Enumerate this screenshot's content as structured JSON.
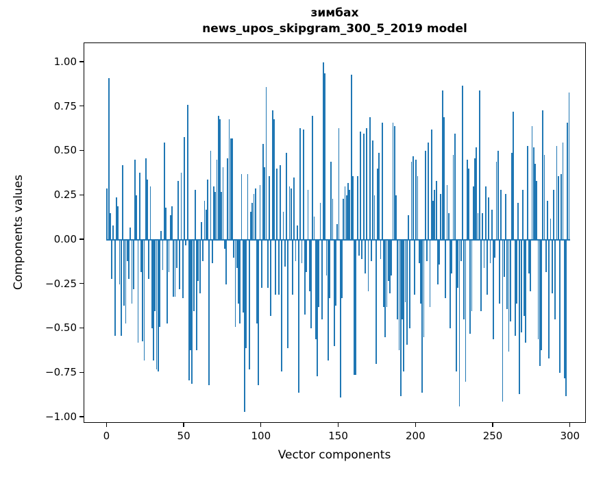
{
  "figure": {
    "title_line1": "зимбах",
    "title_line2": "news_upos_skipgram_300_5_2019 model",
    "xlabel": "Vector components",
    "ylabel": "Components values"
  },
  "chart_data": {
    "type": "bar",
    "title": "зимбах",
    "subtitle": "news_upos_skipgram_300_5_2019 model",
    "xlabel": "Vector components",
    "ylabel": "Components values",
    "n_components": 300,
    "bar_color": "#1f77b4",
    "spine_color": "#000000",
    "grid": false,
    "legend": "none",
    "xticks": [
      0,
      50,
      100,
      150,
      200,
      250,
      300
    ],
    "yticks": [
      1.0,
      0.75,
      0.5,
      0.25,
      0.0,
      -0.25,
      -0.5,
      -0.75,
      -1.0
    ],
    "xlim": [
      -14.8,
      310.3
    ],
    "ylim": [
      -1.035,
      1.108
    ],
    "values": [
      0.29,
      0.91,
      0.15,
      -0.22,
      0.08,
      -0.54,
      0.24,
      0.19,
      -0.25,
      -0.54,
      0.42,
      -0.37,
      -0.47,
      -0.12,
      -0.22,
      0.07,
      -0.36,
      -0.28,
      0.45,
      0.25,
      -0.58,
      0.38,
      -0.18,
      -0.57,
      -0.68,
      0.46,
      0.34,
      -0.22,
      0.3,
      -0.5,
      -0.68,
      -0.4,
      -0.73,
      -0.74,
      -0.49,
      0.05,
      -0.17,
      0.55,
      0.18,
      -0.47,
      -0.18,
      0.14,
      0.19,
      -0.32,
      -0.32,
      -0.16,
      0.33,
      -0.28,
      0.38,
      -0.33,
      0.58,
      -0.03,
      0.76,
      -0.79,
      -0.62,
      -0.81,
      -0.4,
      0.28,
      -0.62,
      -0.23,
      -0.3,
      0.1,
      -0.12,
      0.22,
      0.17,
      0.34,
      -0.82,
      0.5,
      -0.13,
      0.3,
      0.27,
      0.45,
      0.7,
      0.68,
      0.27,
      0.41,
      -0.05,
      -0.25,
      0.46,
      0.68,
      0.57,
      0.57,
      -0.1,
      -0.49,
      -0.16,
      -0.36,
      -0.47,
      0.37,
      -0.41,
      -0.97,
      -0.61,
      0.37,
      -0.73,
      0.16,
      0.21,
      0.26,
      0.29,
      -0.47,
      -0.82,
      0.31,
      -0.27,
      0.54,
      0.41,
      0.86,
      -0.27,
      0.36,
      -0.43,
      0.73,
      0.68,
      -0.31,
      0.4,
      -0.31,
      0.42,
      -0.74,
      0.16,
      -0.15,
      0.49,
      -0.61,
      0.3,
      0.29,
      -0.31,
      0.35,
      -0.12,
      0.08,
      -0.86,
      0.63,
      -0.13,
      0.62,
      -0.42,
      -0.18,
      0.28,
      -0.29,
      -0.5,
      0.7,
      0.13,
      -0.56,
      -0.77,
      -0.38,
      0.21,
      -0.45,
      1.0,
      0.94,
      -0.2,
      -0.68,
      -0.33,
      0.44,
      0.23,
      -0.6,
      -0.37,
      0.09,
      0.63,
      -0.89,
      -0.33,
      0.23,
      0.3,
      0.25,
      0.32,
      0.28,
      0.93,
      0.36,
      -0.76,
      -0.76,
      0.36,
      -0.09,
      0.61,
      -0.11,
      0.6,
      -0.19,
      0.63,
      -0.29,
      0.69,
      -0.12,
      0.56,
      0.25,
      -0.7,
      0.4,
      0.49,
      -0.11,
      0.66,
      -0.38,
      -0.55,
      -0.38,
      -0.23,
      -0.3,
      -0.2,
      0.66,
      0.64,
      0.25,
      -0.45,
      -0.62,
      -0.88,
      -0.45,
      -0.74,
      -0.35,
      -0.59,
      0.14,
      -0.5,
      0.44,
      0.47,
      -0.31,
      0.45,
      0.36,
      -0.13,
      -0.36,
      -0.86,
      -0.55,
      0.5,
      -0.12,
      0.55,
      -0.38,
      0.62,
      0.22,
      0.28,
      0.33,
      -0.25,
      -0.14,
      0.26,
      0.84,
      0.69,
      -0.33,
      0.31,
      0.15,
      -0.5,
      -0.19,
      0.48,
      0.6,
      -0.74,
      -0.27,
      -0.94,
      -0.12,
      0.87,
      -0.45,
      -0.8,
      0.45,
      0.4,
      -0.53,
      -0.4,
      0.3,
      0.46,
      0.52,
      0.15,
      0.84,
      -0.4,
      0.15,
      -0.16,
      0.3,
      -0.31,
      0.24,
      -0.13,
      0.17,
      -0.56,
      -0.1,
      0.44,
      0.5,
      -0.36,
      0.28,
      -0.91,
      -0.21,
      0.26,
      -0.39,
      -0.63,
      -0.46,
      0.49,
      0.72,
      -0.54,
      -0.36,
      0.21,
      -0.87,
      -0.52,
      0.28,
      -0.43,
      -0.58,
      0.53,
      -0.19,
      -0.29,
      0.64,
      0.52,
      0.43,
      0.33,
      -0.56,
      -0.71,
      -0.62,
      0.73,
      0.48,
      -0.18,
      0.22,
      -0.67,
      0.12,
      -0.3,
      0.28,
      -0.45,
      0.53,
      0.36,
      -0.75,
      0.37,
      0.55,
      -0.78,
      -0.88,
      0.66,
      0.83
    ]
  }
}
